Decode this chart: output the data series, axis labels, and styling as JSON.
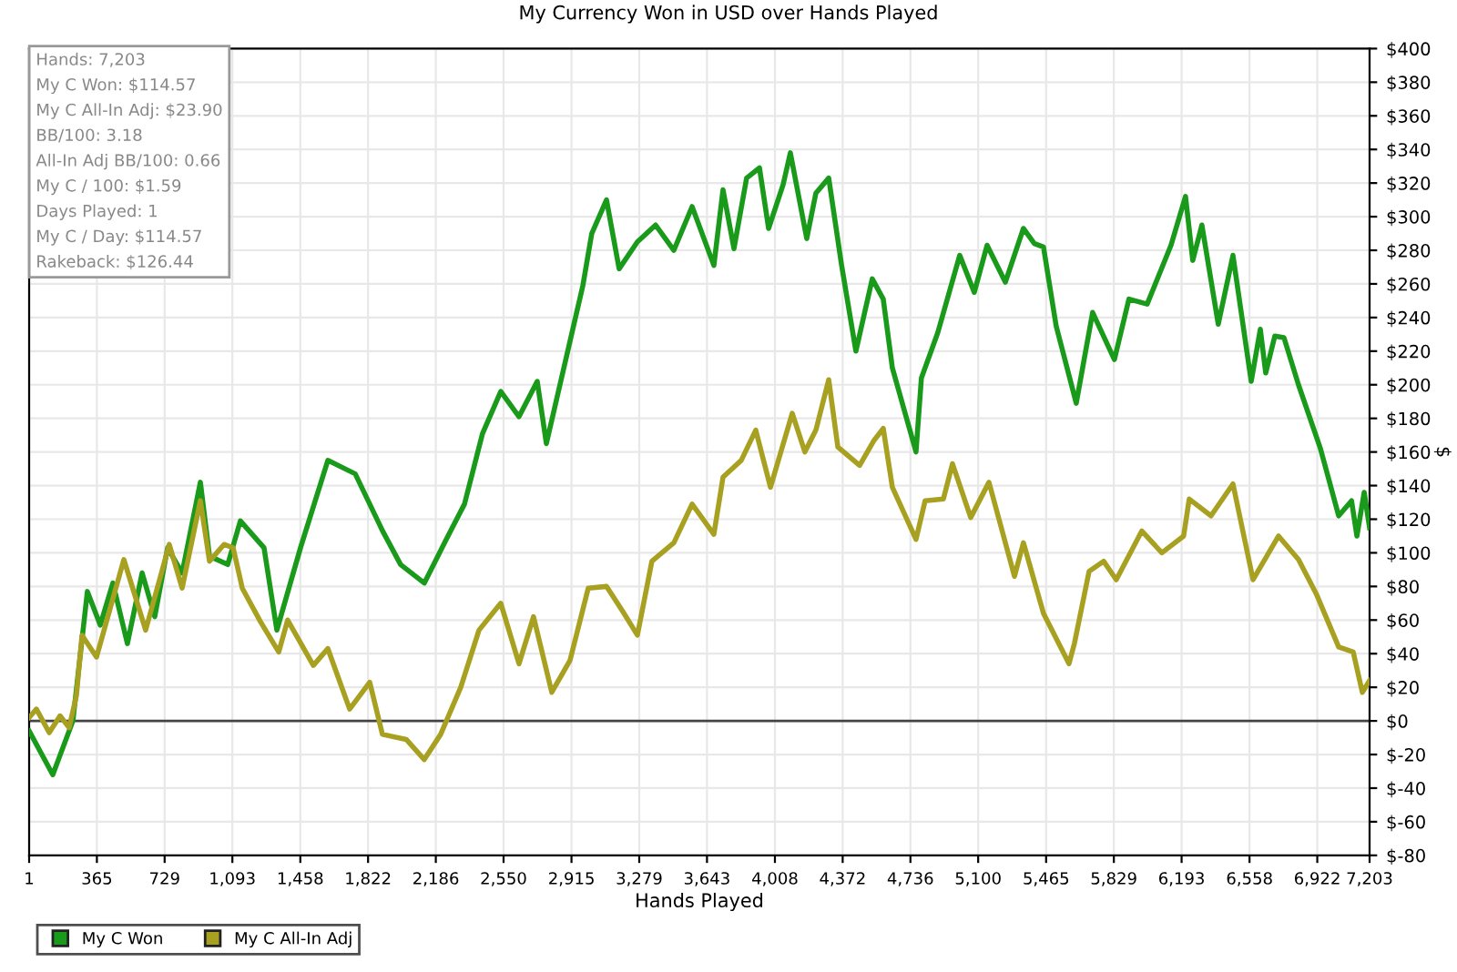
{
  "chart_data": {
    "type": "line",
    "title": "My Currency Won in USD over Hands Played",
    "xlabel": "Hands Played",
    "ylabel": "$",
    "annotations": [
      "Hands: 7,203",
      "My C Won: $114.57",
      "My C All-In Adj: $23.90",
      "BB/100: 3.18",
      "All-In Adj BB/100: 0.66",
      "My C / 100: $1.59",
      "Days Played: 1",
      "My C / Day: $114.57",
      "Rakeback: $126.44"
    ],
    "series": [
      {
        "name": "My C Won",
        "color": "#1a9a1a",
        "x": [
          1,
          128,
          236,
          314,
          383,
          451,
          529,
          608,
          676,
          745,
          823,
          921,
          970,
          1068,
          1136,
          1263,
          1332,
          1459,
          1606,
          1753,
          1900,
          1997,
          2124,
          2242,
          2340,
          2437,
          2535,
          2633,
          2731,
          2780,
          2878,
          2976,
          3024,
          3103,
          3171,
          3269,
          3367,
          3465,
          3563,
          3680,
          3729,
          3788,
          3856,
          3925,
          3974,
          4052,
          4091,
          4179,
          4228,
          4297,
          4365,
          4443,
          4531,
          4590,
          4639,
          4766,
          4795,
          4883,
          5001,
          5079,
          5148,
          5246,
          5343,
          5402,
          5451,
          5519,
          5627,
          5715,
          5832,
          5910,
          6008,
          6136,
          6214,
          6253,
          6302,
          6390,
          6469,
          6567,
          6616,
          6645,
          6694,
          6743,
          6821,
          6939,
          7037,
          7106,
          7135,
          7174,
          7203
        ],
        "values": [
          -6,
          -32,
          0,
          77,
          57,
          82,
          46,
          88,
          62,
          103,
          88,
          142,
          98,
          93,
          119,
          103,
          54,
          103,
          155,
          147,
          113,
          93,
          82,
          108,
          129,
          171,
          196,
          181,
          202,
          165,
          212,
          259,
          290,
          310,
          269,
          285,
          295,
          280,
          306,
          271,
          316,
          281,
          323,
          329,
          293,
          319,
          338,
          287,
          314,
          323,
          272,
          220,
          263,
          251,
          210,
          160,
          204,
          231,
          277,
          255,
          283,
          261,
          293,
          284,
          282,
          235,
          189,
          243,
          215,
          251,
          248,
          283,
          312,
          274,
          295,
          236,
          277,
          202,
          233,
          207,
          229,
          228,
          200,
          162,
          122,
          131,
          110,
          136,
          115
        ]
      },
      {
        "name": "My C All-In Adj",
        "color": "#a8a020",
        "x": [
          1,
          40,
          109,
          167,
          216,
          255,
          285,
          363,
          510,
          627,
          754,
          823,
          921,
          970,
          1048,
          1097,
          1146,
          1244,
          1342,
          1390,
          1528,
          1606,
          1723,
          1831,
          1899,
          2027,
          2124,
          2212,
          2320,
          2418,
          2535,
          2633,
          2711,
          2809,
          2907,
          3005,
          3103,
          3191,
          3269,
          3347,
          3465,
          3563,
          3680,
          3729,
          3827,
          3905,
          3984,
          4101,
          4169,
          4228,
          4297,
          4346,
          4463,
          4541,
          4590,
          4639,
          4766,
          4815,
          4913,
          4962,
          5060,
          5158,
          5295,
          5343,
          5451,
          5588,
          5617,
          5696,
          5774,
          5842,
          5979,
          6087,
          6204,
          6234,
          6351,
          6469,
          6577,
          6714,
          6821,
          6919,
          7037,
          7115,
          7164,
          7203
        ],
        "values": [
          2,
          7,
          -7,
          3,
          -4,
          15,
          51,
          38,
          96,
          54,
          105,
          79,
          131,
          95,
          105,
          103,
          79,
          59,
          41,
          60,
          33,
          43,
          7,
          23,
          -8,
          -11,
          -23,
          -8,
          20,
          54,
          70,
          34,
          62,
          17,
          36,
          79,
          80,
          65,
          51,
          95,
          106,
          129,
          111,
          145,
          155,
          173,
          139,
          183,
          160,
          173,
          203,
          163,
          152,
          167,
          174,
          139,
          108,
          131,
          132,
          153,
          121,
          142,
          86,
          106,
          64,
          34,
          46,
          89,
          95,
          84,
          113,
          100,
          110,
          132,
          122,
          141,
          84,
          110,
          96,
          75,
          44,
          41,
          17,
          24
        ]
      }
    ],
    "xlim": [
      1,
      7203
    ],
    "xticks": [
      1,
      {
        "value": 365,
        "label": "365"
      },
      {
        "value": 729,
        "label": "729"
      },
      {
        "value": 1093,
        "label": "1,093"
      },
      {
        "value": 1458,
        "label": "1,458"
      },
      {
        "value": 1822,
        "label": "1,822"
      },
      {
        "value": 2186,
        "label": "2,186"
      },
      {
        "value": 2550,
        "label": "2,550"
      },
      {
        "value": 2915,
        "label": "2,915"
      },
      {
        "value": 3279,
        "label": "3,279"
      },
      {
        "value": 3643,
        "label": "3,643"
      },
      {
        "value": 4008,
        "label": "4,008"
      },
      {
        "value": 4372,
        "label": "4,372"
      },
      {
        "value": 4736,
        "label": "4,736"
      },
      {
        "value": 5100,
        "label": "5,100"
      },
      {
        "value": 5465,
        "label": "5,465"
      },
      {
        "value": 5829,
        "label": "5,829"
      },
      {
        "value": 6193,
        "label": "6,193"
      },
      {
        "value": 6558,
        "label": "6,558"
      },
      {
        "value": 6922,
        "label": "6,922"
      },
      {
        "value": 7203,
        "label": "7,203"
      }
    ],
    "ylim": [
      -80,
      400
    ],
    "yticks": [
      {
        "value": -80,
        "label": "$-80"
      },
      {
        "value": -60,
        "label": "$-60"
      },
      {
        "value": -40,
        "label": "$-40"
      },
      {
        "value": -20,
        "label": "$-20"
      },
      {
        "value": 0,
        "label": "$0"
      },
      {
        "value": 20,
        "label": "$20"
      },
      {
        "value": 40,
        "label": "$40"
      },
      {
        "value": 60,
        "label": "$60"
      },
      {
        "value": 80,
        "label": "$80"
      },
      {
        "value": 100,
        "label": "$100"
      },
      {
        "value": 120,
        "label": "$120"
      },
      {
        "value": 140,
        "label": "$140"
      },
      {
        "value": 160,
        "label": "$160"
      },
      {
        "value": 180,
        "label": "$180"
      },
      {
        "value": 200,
        "label": "$200"
      },
      {
        "value": 220,
        "label": "$220"
      },
      {
        "value": 240,
        "label": "$240"
      },
      {
        "value": 260,
        "label": "$260"
      },
      {
        "value": 280,
        "label": "$280"
      },
      {
        "value": 300,
        "label": "$300"
      },
      {
        "value": 320,
        "label": "$320"
      },
      {
        "value": 340,
        "label": "$340"
      },
      {
        "value": 360,
        "label": "$360"
      },
      {
        "value": 380,
        "label": "$380"
      },
      {
        "value": 400,
        "label": "$400"
      }
    ],
    "ref_lines": [
      {
        "axis": "y",
        "value": 0,
        "color": "#444444"
      }
    ],
    "grid": true,
    "legend": "bottom left",
    "marker": "none",
    "line_style": "solid"
  }
}
